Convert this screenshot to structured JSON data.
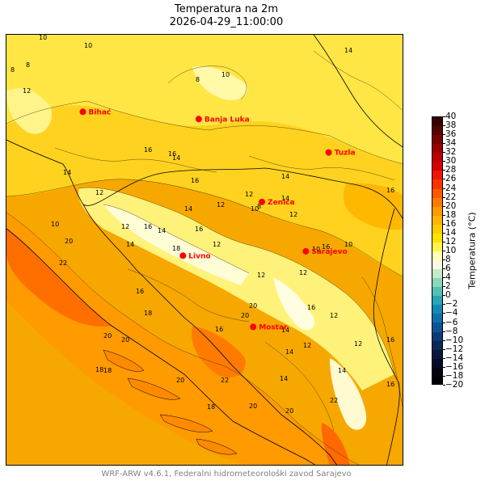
{
  "title": {
    "line1": "Temperatura na 2m",
    "line2": "2026-04-29_11:00:00"
  },
  "footer": "WRF-ARW v4.6.1, Federalni hidrometeorološki zavod Sarajevo",
  "colorbar": {
    "label": "Temperatura (°C)",
    "min": -20,
    "max": 40,
    "ticks": [
      "40",
      "38",
      "36",
      "34",
      "32",
      "30",
      "28",
      "26",
      "24",
      "22",
      "20",
      "18",
      "16",
      "14",
      "12",
      "10",
      "8",
      "6",
      "4",
      "2",
      "0",
      "−2",
      "−4",
      "−6",
      "−8",
      "−10",
      "−12",
      "−14",
      "−16",
      "−18",
      "−20"
    ],
    "colors": [
      "#3a0000",
      "#560000",
      "#7a0000",
      "#9b0000",
      "#bb0000",
      "#d60000",
      "#ee1600",
      "#ff3300",
      "#ff5a00",
      "#ff7b00",
      "#ff9a00",
      "#ffb400",
      "#ffcc00",
      "#ffe300",
      "#fff44a",
      "#ffffb5",
      "#fafae0",
      "#c5ecc8",
      "#8cd7b8",
      "#54bfb4",
      "#2aa5b7",
      "#138ab4",
      "#0e6ea8",
      "#0d5394",
      "#0c3b77",
      "#0b2758",
      "#081640",
      "#050a26",
      "#020412",
      "#000000"
    ]
  },
  "cities": [
    {
      "name": "Bihać",
      "lon": 15.87,
      "lat": 44.82
    },
    {
      "name": "Banja Luka",
      "lon": 17.19,
      "lat": 44.77
    },
    {
      "name": "Tuzla",
      "lon": 18.67,
      "lat": 44.54
    },
    {
      "name": "Zenica",
      "lon": 17.91,
      "lat": 44.2
    },
    {
      "name": "Sarajevo",
      "lon": 18.41,
      "lat": 43.86
    },
    {
      "name": "Livno",
      "lon": 17.01,
      "lat": 43.83
    },
    {
      "name": "Mostar",
      "lon": 17.81,
      "lat": 43.34
    }
  ],
  "contour_labels": [
    "10",
    "10",
    "8",
    "8",
    "12",
    "8",
    "10",
    "14",
    "16",
    "16",
    "14",
    "16",
    "14",
    "12",
    "12",
    "14",
    "16",
    "12",
    "10",
    "8",
    "14",
    "12",
    "14",
    "12",
    "16",
    "10",
    "14",
    "20",
    "22",
    "18",
    "16",
    "14",
    "12",
    "10",
    "16",
    "20",
    "20",
    "16",
    "14",
    "12",
    "20",
    "18",
    "22",
    "20",
    "18",
    "14",
    "16",
    "12",
    "18",
    "20",
    "16",
    "14",
    "12",
    "12",
    "20",
    "22",
    "16",
    "18",
    "20",
    "14",
    "12",
    "10",
    "16"
  ]
}
